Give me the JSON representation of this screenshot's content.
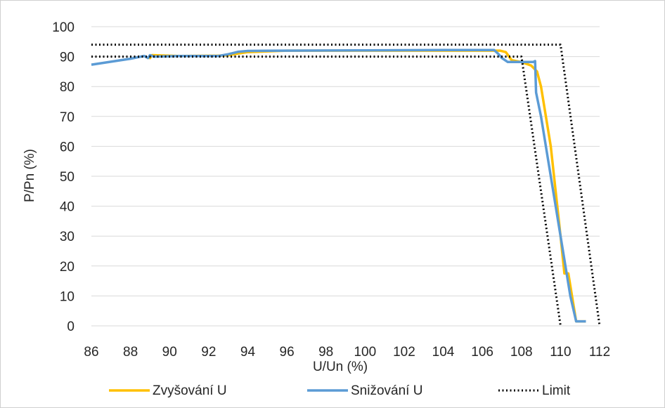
{
  "chart_data": {
    "type": "line",
    "xlabel": "U/Un (%)",
    "ylabel": "P/Pn (%)",
    "xlim": [
      86,
      112
    ],
    "ylim": [
      0,
      100
    ],
    "x_ticks": [
      86,
      88,
      90,
      92,
      94,
      96,
      98,
      100,
      102,
      104,
      106,
      108,
      110,
      112
    ],
    "y_ticks": [
      0,
      10,
      20,
      30,
      40,
      50,
      60,
      70,
      80,
      90,
      100
    ],
    "grid": "horizontal",
    "legend_position": "bottom",
    "series": [
      {
        "name": "Zvyšování U",
        "color": "#FFC000",
        "style": "solid",
        "points": [
          [
            88.9,
            90
          ],
          [
            89.0,
            89.5
          ],
          [
            89.1,
            90.5
          ],
          [
            90.5,
            90.2
          ],
          [
            92.5,
            90.3
          ],
          [
            93.0,
            90.5
          ],
          [
            93.5,
            91.0
          ],
          [
            94.0,
            91.5
          ],
          [
            96.0,
            92
          ],
          [
            100.0,
            92
          ],
          [
            104.0,
            92
          ],
          [
            106.9,
            92
          ],
          [
            107.2,
            91.5
          ],
          [
            107.5,
            88.8
          ],
          [
            108.0,
            88.2
          ],
          [
            108.5,
            87
          ],
          [
            108.8,
            85
          ],
          [
            109.0,
            80
          ],
          [
            109.5,
            60
          ],
          [
            110.0,
            30
          ],
          [
            110.2,
            17.5
          ],
          [
            110.4,
            17.5
          ],
          [
            110.8,
            1.5
          ],
          [
            111.3,
            1.5
          ]
        ]
      },
      {
        "name": "Snižování U",
        "color": "#5B9BD5",
        "style": "solid",
        "points": [
          [
            86.0,
            87.3
          ],
          [
            88.0,
            89.3
          ],
          [
            88.7,
            90.2
          ],
          [
            88.9,
            89.5
          ],
          [
            89.0,
            90.5
          ],
          [
            89.2,
            90
          ],
          [
            90.5,
            90.2
          ],
          [
            92.5,
            90.2
          ],
          [
            93.0,
            90.8
          ],
          [
            93.5,
            91.6
          ],
          [
            94.0,
            91.9
          ],
          [
            96.0,
            92
          ],
          [
            100.0,
            92.1
          ],
          [
            104.0,
            92.2
          ],
          [
            106.6,
            92.2
          ],
          [
            106.8,
            91
          ],
          [
            107.0,
            89.5
          ],
          [
            107.3,
            88.2
          ],
          [
            108.0,
            88.2
          ],
          [
            108.6,
            88.2
          ],
          [
            108.7,
            88.5
          ],
          [
            108.75,
            78
          ],
          [
            109.0,
            70
          ],
          [
            109.5,
            50
          ],
          [
            110.0,
            30
          ],
          [
            110.5,
            10
          ],
          [
            110.8,
            1.5
          ],
          [
            111.3,
            1.5
          ]
        ]
      },
      {
        "name": "Limit",
        "color": "#000000",
        "style": "dotted",
        "segments": [
          [
            [
              86.0,
              90
            ],
            [
              108.0,
              90
            ],
            [
              110.0,
              0
            ]
          ],
          [
            [
              86.0,
              94
            ],
            [
              110.0,
              94
            ],
            [
              112.0,
              0
            ]
          ]
        ]
      }
    ]
  }
}
